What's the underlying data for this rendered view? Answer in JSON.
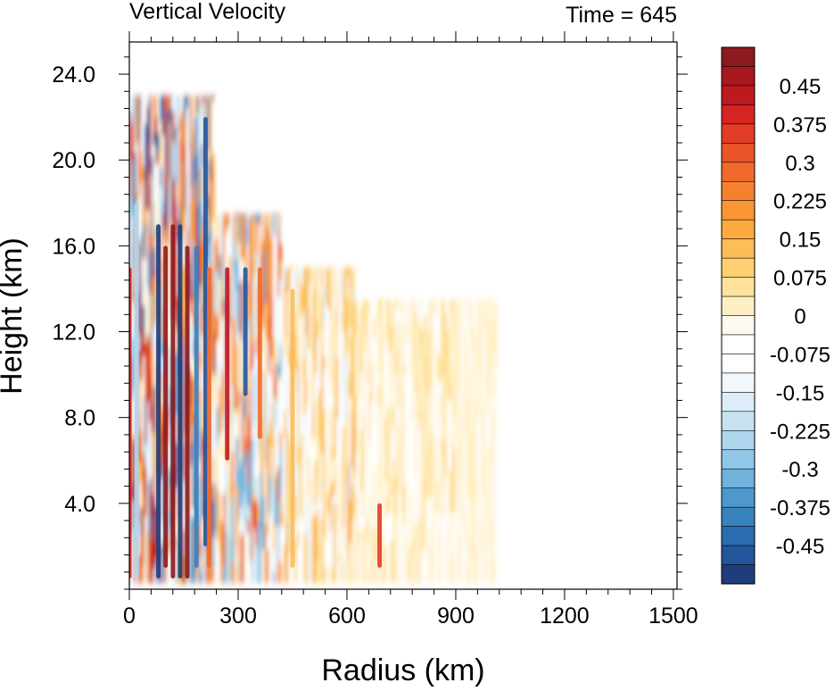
{
  "chart_data": {
    "type": "heatmap",
    "title": "Vertical Velocity",
    "subtitle": "Time = 645",
    "xlabel": "Radius (km)",
    "ylabel": "Height (km)",
    "xlim": [
      0,
      1510
    ],
    "ylim": [
      0,
      25.5
    ],
    "x_ticks": [
      "0",
      "300",
      "600",
      "900",
      "1200",
      "1500"
    ],
    "y_ticks": [
      "4.0",
      "8.0",
      "12.0",
      "16.0",
      "20.0",
      "24.0"
    ],
    "colorbar": {
      "labels": [
        "0.45",
        "0.375",
        "0.3",
        "0.225",
        "0.15",
        "0.075",
        "0",
        "-0.075",
        "-0.15",
        "-0.225",
        "-0.3",
        "-0.375",
        "-0.45"
      ],
      "range": [
        -0.525,
        0.525
      ]
    },
    "features": [
      {
        "radius": 0,
        "height_min": 0.5,
        "height_max": 15,
        "value": 0.4
      },
      {
        "radius": 20,
        "height_min": 0.5,
        "height_max": 18,
        "value": -0.25
      },
      {
        "radius": 80,
        "height_min": 0.5,
        "height_max": 17,
        "value": -0.5
      },
      {
        "radius": 100,
        "height_min": 1,
        "height_max": 16,
        "value": 0.5
      },
      {
        "radius": 120,
        "height_min": 0.5,
        "height_max": 17,
        "value": 0.5
      },
      {
        "radius": 140,
        "height_min": 0.5,
        "height_max": 17,
        "value": -0.5
      },
      {
        "radius": 160,
        "height_min": 0.5,
        "height_max": 16,
        "value": 0.5
      },
      {
        "radius": 185,
        "height_min": 1,
        "height_max": 16,
        "value": -0.4
      },
      {
        "radius": 210,
        "height_min": 2,
        "height_max": 22,
        "value": -0.45
      },
      {
        "radius": 220,
        "height_min": 1,
        "height_max": 15,
        "value": 0.3
      },
      {
        "radius": 270,
        "height_min": 6,
        "height_max": 15,
        "value": 0.45
      },
      {
        "radius": 320,
        "height_min": 9,
        "height_max": 15,
        "value": -0.45
      },
      {
        "radius": 360,
        "height_min": 7,
        "height_max": 15,
        "value": 0.3
      },
      {
        "radius": 450,
        "height_min": 1,
        "height_max": 14,
        "value": 0.15
      },
      {
        "radius": 690,
        "height_min": 1,
        "height_max": 4,
        "value": 0.35
      }
    ]
  }
}
